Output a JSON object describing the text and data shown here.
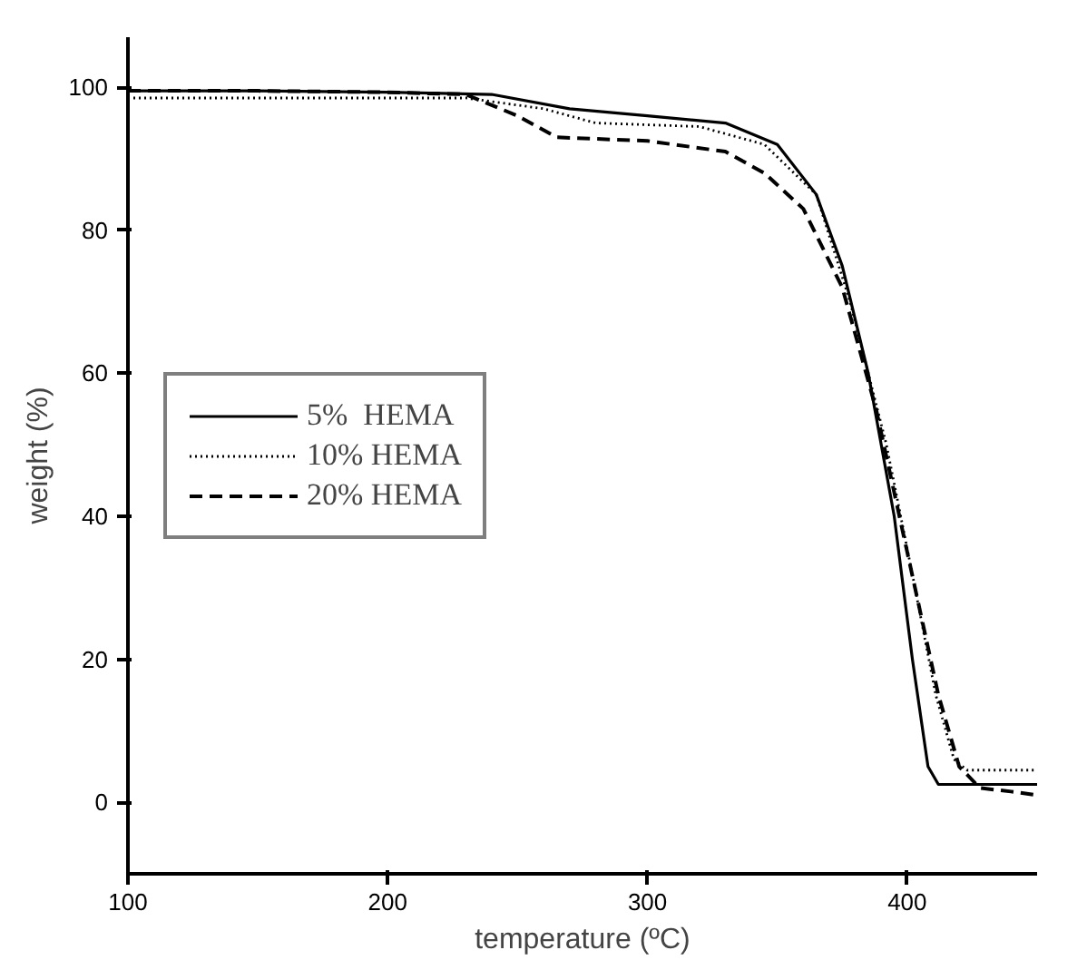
{
  "chart_data": {
    "type": "line",
    "xlabel": "temperature (ºC)",
    "ylabel": "weight (%)",
    "xlim": [
      100,
      450
    ],
    "ylim": [
      -10,
      107
    ],
    "xticks": [
      100,
      200,
      300,
      400
    ],
    "yticks": [
      0,
      20,
      40,
      60,
      80,
      100
    ],
    "grid": false,
    "legend": "center left",
    "series": [
      {
        "name": "5%  HEMA",
        "color": "#000000",
        "line_style": "solid",
        "x": [
          100,
          150,
          200,
          240,
          270,
          300,
          330,
          350,
          365,
          375,
          385,
          395,
          402,
          408,
          412,
          420,
          450
        ],
        "values": [
          99.5,
          99.5,
          99.3,
          99,
          97,
          96,
          95,
          92,
          85,
          75,
          60,
          40,
          20,
          5,
          2.5,
          2.5,
          2.5
        ]
      },
      {
        "name": "10% HEMA",
        "color": "#000000",
        "line_style": "dotted",
        "x": [
          100,
          150,
          200,
          230,
          260,
          280,
          320,
          345,
          365,
          378,
          392,
          403,
          411,
          418,
          423,
          430,
          450
        ],
        "values": [
          98.5,
          98.5,
          98.5,
          98.5,
          97,
          95,
          94.5,
          92,
          85,
          70,
          50,
          30,
          15,
          6,
          4.5,
          4.5,
          4.5
        ]
      },
      {
        "name": "20% HEMA",
        "color": "#000000",
        "line_style": "dashed",
        "x": [
          100,
          150,
          200,
          230,
          250,
          265,
          300,
          330,
          345,
          360,
          375,
          388,
          400,
          412,
          420,
          428,
          440,
          450
        ],
        "values": [
          99.5,
          99.5,
          99.3,
          99,
          96,
          93,
          92.5,
          91,
          88,
          83,
          72,
          55,
          35,
          15,
          5,
          2,
          1.5,
          1
        ]
      }
    ]
  }
}
